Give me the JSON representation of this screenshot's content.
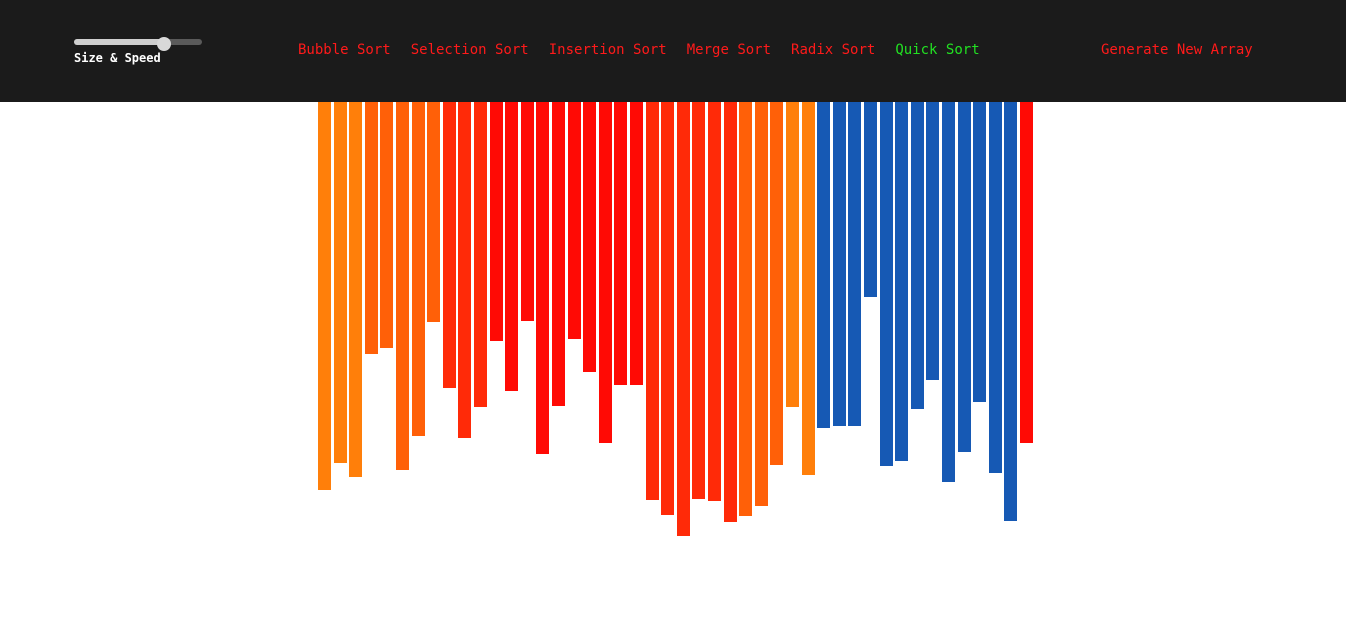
{
  "controls": {
    "slider_label": "Size & Speed",
    "slider_value": 0.7
  },
  "algorithms": [
    {
      "label": "Bubble Sort",
      "active": false
    },
    {
      "label": "Selection Sort",
      "active": false
    },
    {
      "label": "Insertion Sort",
      "active": false
    },
    {
      "label": "Merge Sort",
      "active": false
    },
    {
      "label": "Radix Sort",
      "active": false
    },
    {
      "label": "Quick Sort",
      "active": true
    }
  ],
  "generate_label": "Generate New Array",
  "colors": {
    "nav_bg": "#1b1b1b",
    "link": "#ff1a1a",
    "active_link": "#22e022",
    "bar_orange": "#ff7f0a",
    "bar_dark_orange": "#ff6008",
    "bar_red_orange": "#ff2a08",
    "bar_red": "#ff0a05",
    "bar_blue": "#1659b4"
  },
  "array": {
    "values": [
      388,
      361,
      375,
      252,
      246,
      368,
      334,
      220,
      286,
      336,
      305,
      239,
      289,
      219,
      352,
      304,
      237,
      270,
      341,
      283,
      283,
      398,
      413,
      434,
      397,
      399,
      420,
      414,
      404,
      363,
      305,
      373,
      326,
      324,
      324,
      195,
      364,
      359,
      307,
      278,
      380,
      350,
      300,
      371,
      419,
      341
    ],
    "bar_colors": [
      "bar_orange",
      "bar_orange",
      "bar_orange",
      "bar_dark_orange",
      "bar_dark_orange",
      "bar_dark_orange",
      "bar_dark_orange",
      "bar_dark_orange",
      "bar_red_orange",
      "bar_red_orange",
      "bar_red_orange",
      "bar_red",
      "bar_red",
      "bar_red",
      "bar_red",
      "bar_red",
      "bar_red",
      "bar_red",
      "bar_red",
      "bar_red",
      "bar_red",
      "bar_red_orange",
      "bar_red_orange",
      "bar_red_orange",
      "bar_red_orange",
      "bar_red_orange",
      "bar_red_orange",
      "bar_dark_orange",
      "bar_dark_orange",
      "bar_dark_orange",
      "bar_orange",
      "bar_orange",
      "bar_blue",
      "bar_blue",
      "bar_blue",
      "bar_blue",
      "bar_blue",
      "bar_blue",
      "bar_blue",
      "bar_blue",
      "bar_blue",
      "bar_blue",
      "bar_blue",
      "bar_blue",
      "bar_blue",
      "bar_red"
    ]
  }
}
